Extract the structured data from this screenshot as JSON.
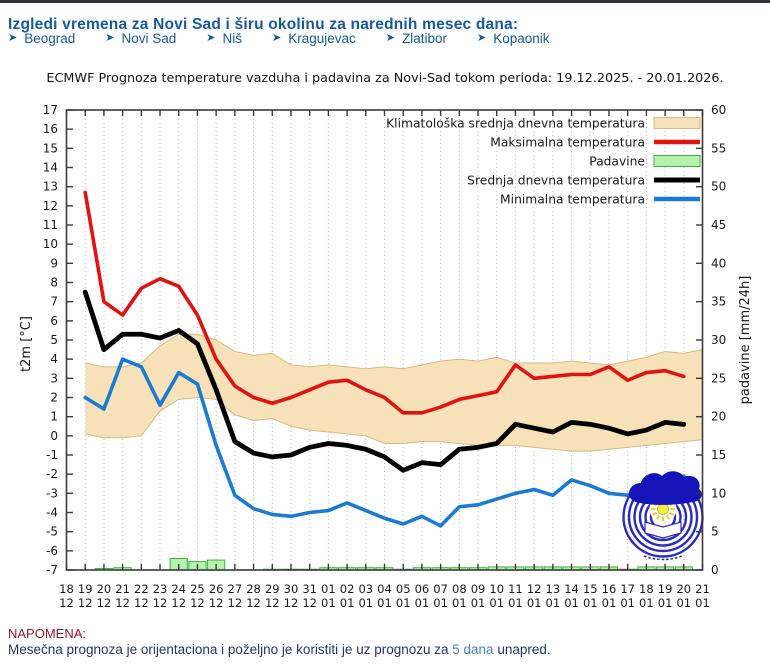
{
  "header": {
    "title": "Izgledi vremena za Novi Sad i širu okolinu za narednih mesec dana:"
  },
  "nav": {
    "arrow": "➤",
    "cities": [
      "Beograd",
      "Novi Sad",
      "Niš",
      "Kragujevac",
      "Zlatibor",
      "Kopaonik"
    ]
  },
  "chart_data": {
    "type": "line",
    "title": "ECMWF Prognoza temperature vazduha i padavina za Novi-Sad tokom perioda: 19.12.2025. - 20.01.2026.",
    "ylabel_left": "t2m [°C]",
    "ylabel_right": "padavine [mm/24h]",
    "ylim_left": [
      -7,
      17
    ],
    "ylim_right": [
      0,
      60
    ],
    "yticks_left": [
      -7,
      -6,
      -5,
      -4,
      -3,
      -2,
      -1,
      0,
      1,
      2,
      3,
      4,
      5,
      6,
      7,
      8,
      9,
      10,
      11,
      12,
      13,
      14,
      15,
      16,
      17
    ],
    "yticks_right": [
      0,
      5,
      10,
      15,
      20,
      25,
      30,
      35,
      40,
      45,
      50,
      55,
      60
    ],
    "grid": "vertical-dotted",
    "legend_position": "top-right-inside",
    "x_tick_days": [
      "18",
      "19",
      "20",
      "21",
      "22",
      "23",
      "24",
      "25",
      "26",
      "27",
      "28",
      "29",
      "30",
      "31",
      "01",
      "02",
      "03",
      "04",
      "05",
      "06",
      "07",
      "08",
      "09",
      "10",
      "11",
      "12",
      "13",
      "14",
      "15",
      "16",
      "17",
      "18",
      "19",
      "20",
      "21"
    ],
    "x_tick_months": [
      "12",
      "12",
      "12",
      "12",
      "12",
      "12",
      "12",
      "12",
      "12",
      "12",
      "12",
      "12",
      "12",
      "12",
      "01",
      "01",
      "01",
      "01",
      "01",
      "01",
      "01",
      "01",
      "01",
      "01",
      "01",
      "01",
      "01",
      "01",
      "01",
      "01",
      "01",
      "01",
      "01",
      "01",
      "01"
    ],
    "x_start_index": 1,
    "series": [
      {
        "name": "Klimatološka srednja dnevna temperatura",
        "type": "band",
        "swatch": "box",
        "color": "#f6e1b8",
        "edge": "#d8b97e",
        "upper": [
          3.8,
          3.6,
          3.6,
          3.8,
          4.7,
          5.3,
          5.3,
          5.0,
          4.4,
          4.2,
          4.3,
          3.7,
          3.6,
          3.7,
          3.6,
          3.5,
          3.6,
          3.5,
          3.7,
          3.9,
          4.0,
          3.9,
          4.1,
          3.8,
          3.8,
          3.8,
          3.9,
          3.8,
          3.7,
          3.9,
          4.1,
          4.4,
          4.3,
          4.5
        ],
        "lower": [
          0.1,
          -0.1,
          -0.1,
          0.0,
          1.3,
          1.9,
          2.0,
          1.9,
          1.1,
          0.8,
          0.9,
          0.5,
          0.3,
          0.2,
          0.1,
          0.0,
          -0.4,
          -0.4,
          -0.3,
          -0.3,
          -0.4,
          -0.5,
          -0.5,
          -0.5,
          -0.6,
          -0.7,
          -0.8,
          -0.8,
          -0.7,
          -0.6,
          -0.5,
          -0.4,
          -0.3,
          -0.2
        ]
      },
      {
        "name": "Maksimalna temperatura",
        "type": "line",
        "swatch": "line",
        "color": "#e01212",
        "values": [
          12.7,
          7.0,
          6.3,
          7.7,
          8.2,
          7.8,
          6.3,
          4.0,
          2.6,
          2.0,
          1.7,
          2.0,
          2.4,
          2.8,
          2.9,
          2.4,
          2.0,
          1.2,
          1.2,
          1.5,
          1.9,
          2.1,
          2.3,
          3.7,
          3.0,
          3.1,
          3.2,
          3.2,
          3.6,
          2.9,
          3.3,
          3.4,
          3.1
        ]
      },
      {
        "name": "Padavine",
        "type": "bar",
        "swatch": "box",
        "axis": "right",
        "color": "#b4f2ae",
        "edge": "#3cb43c",
        "values": [
          0,
          0.2,
          0.3,
          0,
          0,
          1.5,
          1.1,
          1.3,
          0,
          0,
          0.1,
          0.1,
          0.1,
          0.3,
          0.3,
          0.3,
          0.3,
          0.1,
          0.3,
          0.3,
          0.3,
          0.3,
          0.4,
          0.4,
          0.4,
          0.4,
          0.4,
          0.4,
          0.4,
          0.1,
          0.4,
          0.4,
          0.4
        ]
      },
      {
        "name": "Srednja dnevna temperatura",
        "type": "line",
        "swatch": "line",
        "color": "#000000",
        "values": [
          7.5,
          4.5,
          5.3,
          5.3,
          5.1,
          5.5,
          4.8,
          2.4,
          -0.3,
          -0.9,
          -1.1,
          -1.0,
          -0.6,
          -0.4,
          -0.5,
          -0.7,
          -1.1,
          -1.8,
          -1.4,
          -1.5,
          -0.7,
          -0.6,
          -0.4,
          0.6,
          0.4,
          0.2,
          0.7,
          0.6,
          0.4,
          0.1,
          0.3,
          0.7,
          0.6
        ]
      },
      {
        "name": "Minimalna temperatura",
        "type": "line",
        "swatch": "line",
        "color": "#1b7ad2",
        "values": [
          2.0,
          1.4,
          4.0,
          3.6,
          1.6,
          3.3,
          2.7,
          -0.5,
          -3.1,
          -3.8,
          -4.1,
          -4.2,
          -4.0,
          -3.9,
          -3.5,
          -3.9,
          -4.3,
          -4.6,
          -4.2,
          -4.7,
          -3.7,
          -3.6,
          -3.3,
          -3.0,
          -2.8,
          -3.1,
          -2.3,
          -2.6,
          -3.0,
          -3.1,
          -2.6,
          -2.3,
          -2.1
        ]
      }
    ],
    "logo": {
      "description": "RHMZ round logo",
      "ring_color": "#2b2bbf",
      "cloud_color": "#1414b8",
      "sun_color": "#f7ef3e"
    }
  },
  "note": {
    "heading": "NAPOMENA:",
    "body_before": "Mesečna prognoza je orijentaciona i poželjno je koristiti je uz prognozu za ",
    "link_text": "5 dana",
    "body_after": " unapred."
  }
}
